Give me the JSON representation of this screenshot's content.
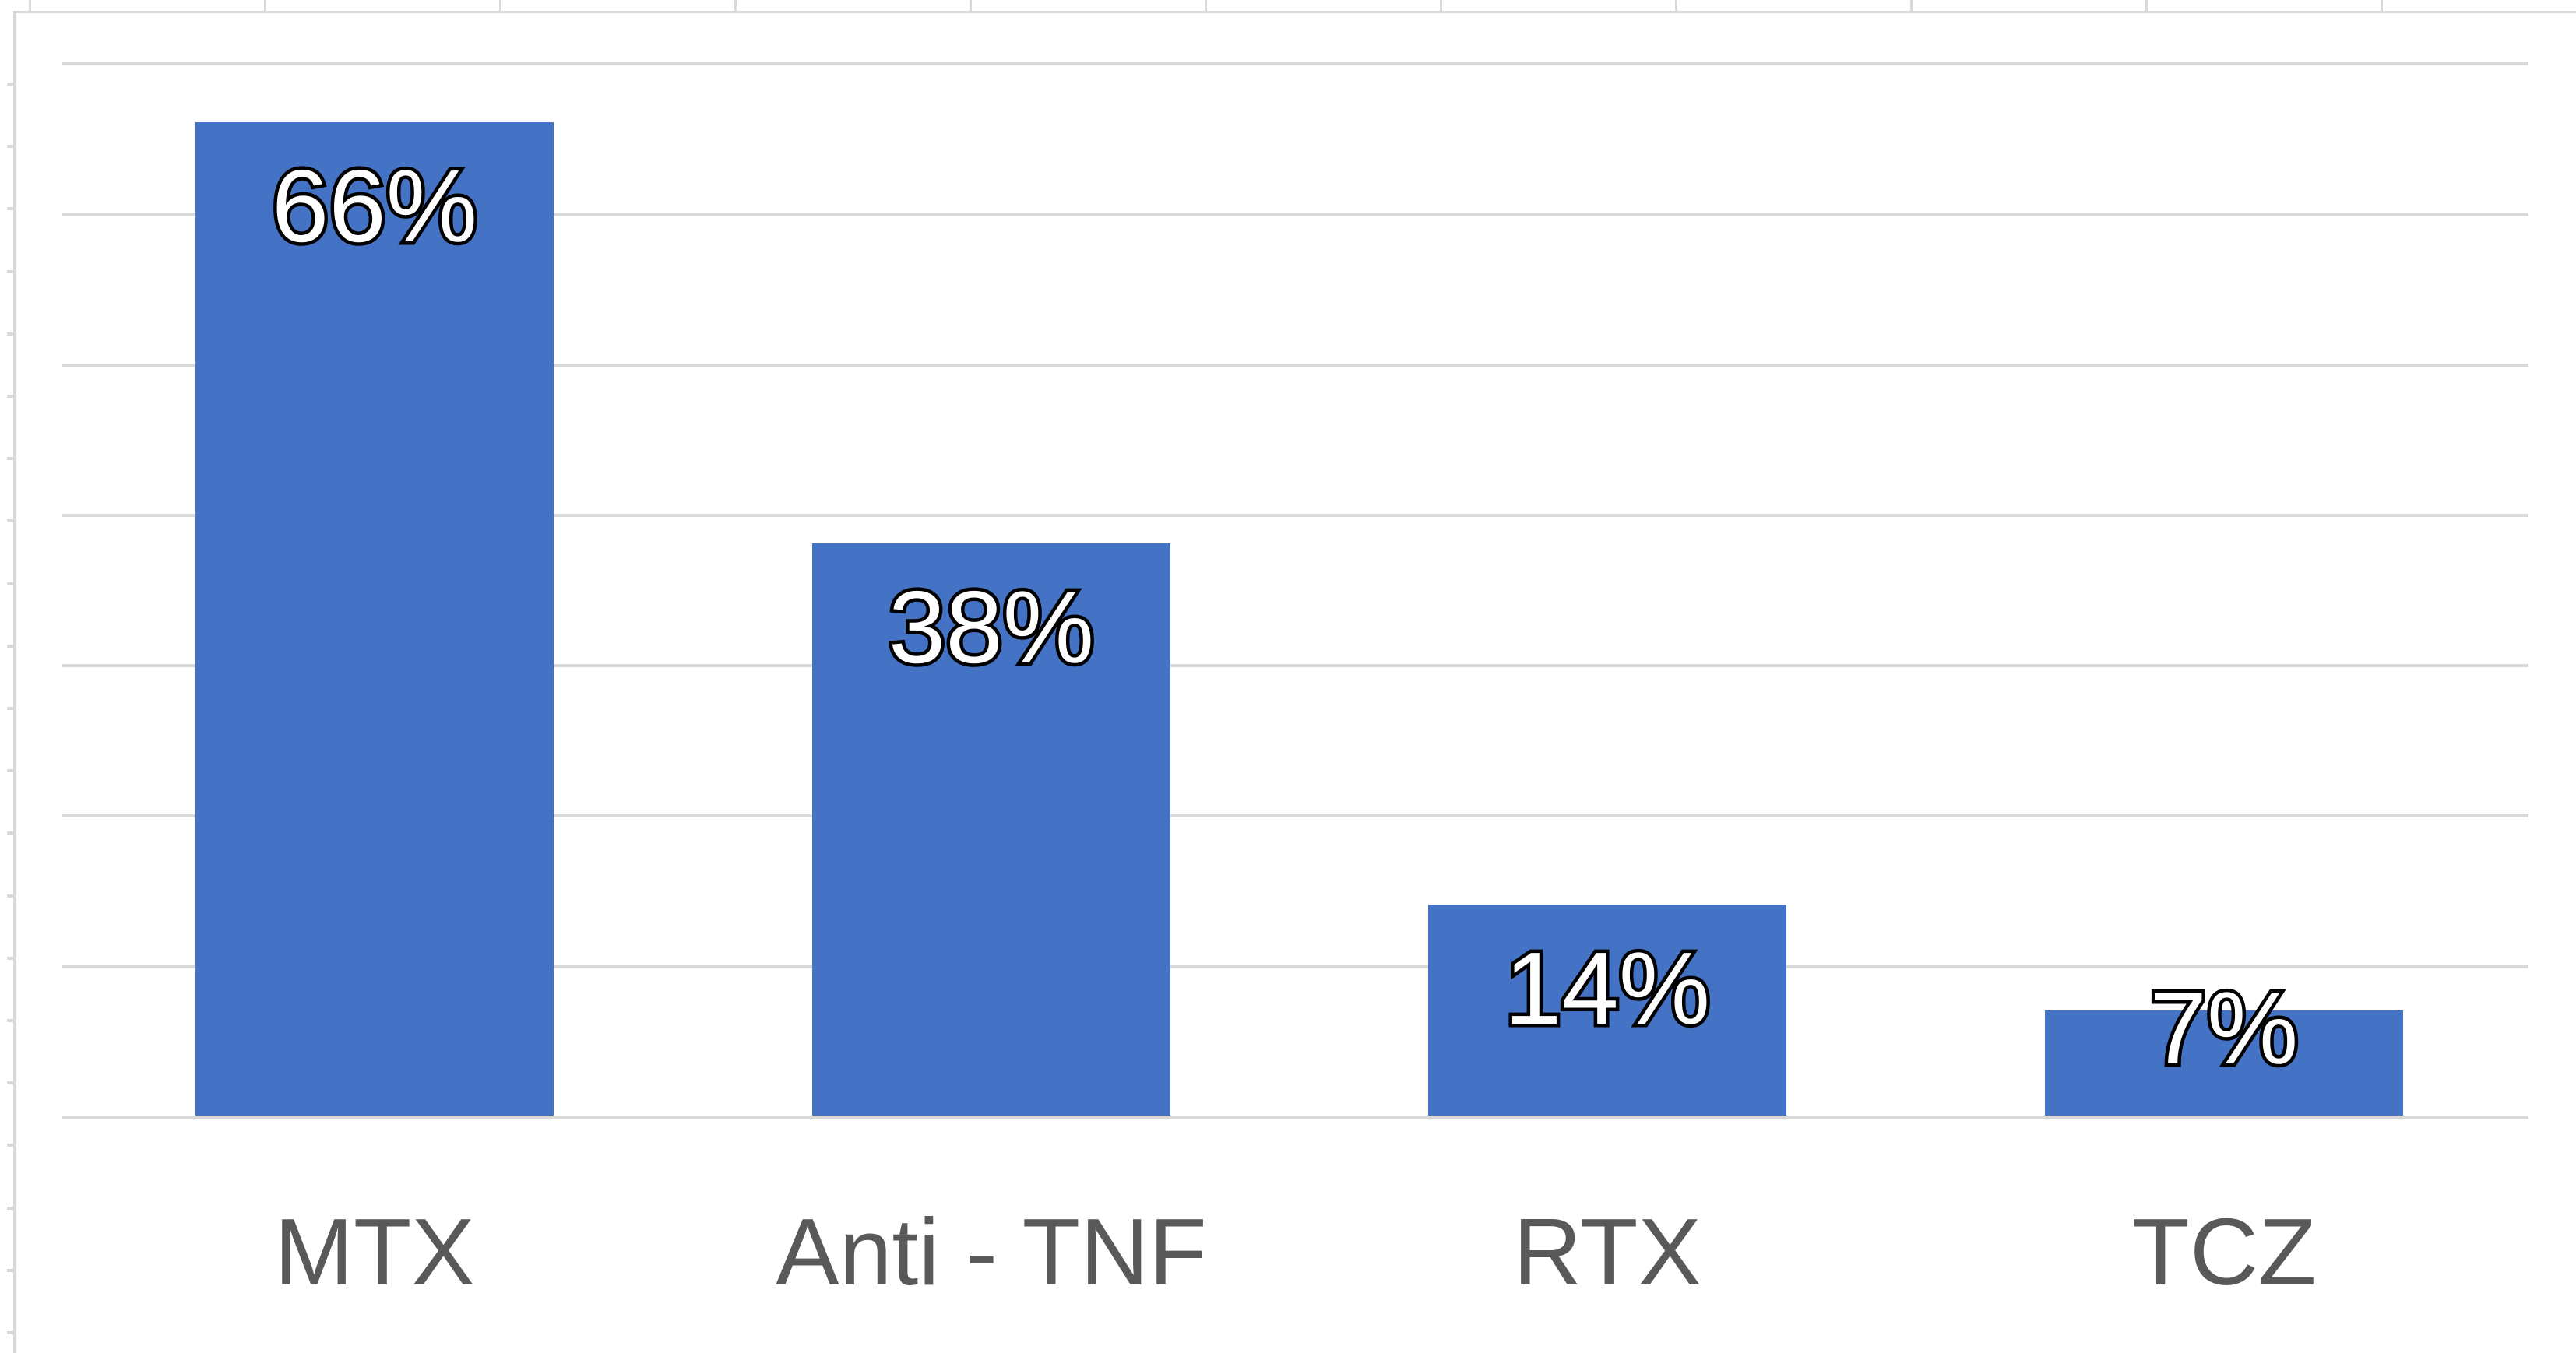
{
  "chart_data": {
    "type": "bar",
    "categories": [
      "MTX",
      "Anti - TNF",
      "RTX",
      "TCZ"
    ],
    "values": [
      66,
      38,
      14,
      7
    ],
    "data_labels": [
      "66%",
      "38%",
      "14%",
      "7%"
    ],
    "ylim": [
      0,
      73
    ],
    "gridline_interval_pct": 10,
    "grid": true,
    "legend": false,
    "axis_tick_labels_visible": false,
    "colors": {
      "bar": "#4472C4",
      "data_label_fill": "#FFFFFF",
      "data_label_outline": "#000000",
      "category_label": "#595959",
      "gridline": "#D9D9D9",
      "chart_border": "#D9D9D9",
      "worksheet_gridline_stub": "#D9D9D9",
      "background": "#FFFFFF"
    }
  }
}
